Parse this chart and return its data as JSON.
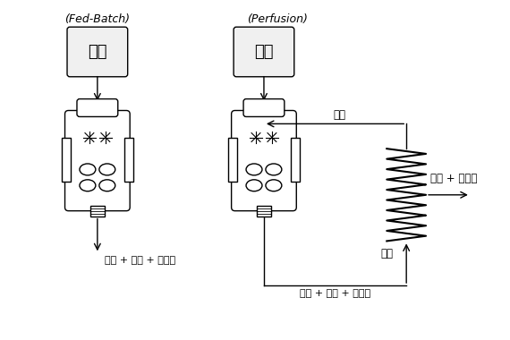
{
  "bg_color": "#ffffff",
  "text_color": "#000000",
  "title_left": "(Fed-Batch)",
  "title_right": "(Perfusion)",
  "label_media": "배지",
  "label_output_left": "세포 + 배지 + 노폐물",
  "label_output_bottom": "세포 + 배지 + 노폐물",
  "label_cell": "세포",
  "label_waste": "배지 + 노폐물",
  "label_filter": "필터",
  "box_color": "#f0f0f0",
  "box_edge": "#000000",
  "line_color": "#000000",
  "reactor_body_color": "#ffffff",
  "reactor_edge_color": "#000000"
}
